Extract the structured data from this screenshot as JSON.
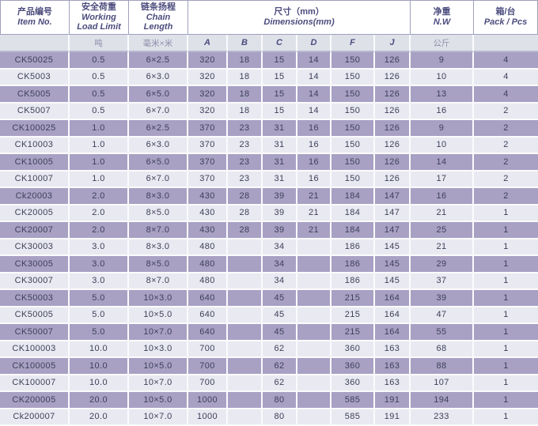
{
  "colors": {
    "band_purple": "#a8a1c4",
    "band_light": "#e8e9f1",
    "subheader_bg": "#dfe1e9",
    "header_text": "#4c4c7e",
    "data_text": "#3f4058",
    "grid_line": "#fbfbfd",
    "header_border": "#9fa0bc"
  },
  "table": {
    "header": {
      "item_no": {
        "zh": "产品编号",
        "en": "Item No.",
        "unit": ""
      },
      "wll": {
        "zh": "安全荷重",
        "en": "Working Load Limit",
        "unit": "吨"
      },
      "chain": {
        "zh": "链条扬程",
        "en": "Chain Length",
        "unit": "毫米×米"
      },
      "dims": {
        "zh": "尺寸（mm）",
        "en": "Dimensions(mm)",
        "subcols": [
          "A",
          "B",
          "C",
          "D",
          "F",
          "J"
        ]
      },
      "nw": {
        "zh": "净重",
        "en": "N.W",
        "unit": "公斤"
      },
      "pack": {
        "zh": "箱/台",
        "en": "Pack / Pcs",
        "unit": ""
      }
    },
    "rows": [
      [
        "CK50025",
        "0.5",
        "6×2.5",
        "320",
        "18",
        "15",
        "14",
        "150",
        "126",
        "9",
        "4"
      ],
      [
        "CK5003",
        "0.5",
        "6×3.0",
        "320",
        "18",
        "15",
        "14",
        "150",
        "126",
        "10",
        "4"
      ],
      [
        "CK5005",
        "0.5",
        "6×5.0",
        "320",
        "18",
        "15",
        "14",
        "150",
        "126",
        "13",
        "4"
      ],
      [
        "CK5007",
        "0.5",
        "6×7.0",
        "320",
        "18",
        "15",
        "14",
        "150",
        "126",
        "16",
        "2"
      ],
      [
        "CK100025",
        "1.0",
        "6×2.5",
        "370",
        "23",
        "31",
        "16",
        "150",
        "126",
        "9",
        "2"
      ],
      [
        "CK10003",
        "1.0",
        "6×3.0",
        "370",
        "23",
        "31",
        "16",
        "150",
        "126",
        "10",
        "2"
      ],
      [
        "CK10005",
        "1.0",
        "6×5.0",
        "370",
        "23",
        "31",
        "16",
        "150",
        "126",
        "14",
        "2"
      ],
      [
        "CK10007",
        "1.0",
        "6×7.0",
        "370",
        "23",
        "31",
        "16",
        "150",
        "126",
        "17",
        "2"
      ],
      [
        "Ck20003",
        "2.0",
        "8×3.0",
        "430",
        "28",
        "39",
        "21",
        "184",
        "147",
        "16",
        "2"
      ],
      [
        "CK20005",
        "2.0",
        "8×5.0",
        "430",
        "28",
        "39",
        "21",
        "184",
        "147",
        "21",
        "1"
      ],
      [
        "CK20007",
        "2.0",
        "8×7.0",
        "430",
        "28",
        "39",
        "21",
        "184",
        "147",
        "25",
        "1"
      ],
      [
        "CK30003",
        "3.0",
        "8×3.0",
        "480",
        "",
        "34",
        "",
        "186",
        "145",
        "21",
        "1"
      ],
      [
        "CK30005",
        "3.0",
        "8×5.0",
        "480",
        "",
        "34",
        "",
        "186",
        "145",
        "29",
        "1"
      ],
      [
        "CK30007",
        "3.0",
        "8×7.0",
        "480",
        "",
        "34",
        "",
        "186",
        "145",
        "37",
        "1"
      ],
      [
        "CK50003",
        "5.0",
        "10×3.0",
        "640",
        "",
        "45",
        "",
        "215",
        "164",
        "39",
        "1"
      ],
      [
        "CK50005",
        "5.0",
        "10×5.0",
        "640",
        "",
        "45",
        "",
        "215",
        "164",
        "47",
        "1"
      ],
      [
        "CK50007",
        "5.0",
        "10×7.0",
        "640",
        "",
        "45",
        "",
        "215",
        "164",
        "55",
        "1"
      ],
      [
        "CK100003",
        "10.0",
        "10×3.0",
        "700",
        "",
        "62",
        "",
        "360",
        "163",
        "68",
        "1"
      ],
      [
        "CK100005",
        "10.0",
        "10×5.0",
        "700",
        "",
        "62",
        "",
        "360",
        "163",
        "88",
        "1"
      ],
      [
        "CK100007",
        "10.0",
        "10×7.0",
        "700",
        "",
        "62",
        "",
        "360",
        "163",
        "107",
        "1"
      ],
      [
        "CK200005",
        "20.0",
        "10×5.0",
        "1000",
        "",
        "80",
        "",
        "585",
        "191",
        "194",
        "1"
      ],
      [
        "Ck200007",
        "20.0",
        "10×7.0",
        "1000",
        "",
        "80",
        "",
        "585",
        "191",
        "233",
        "1"
      ]
    ]
  }
}
